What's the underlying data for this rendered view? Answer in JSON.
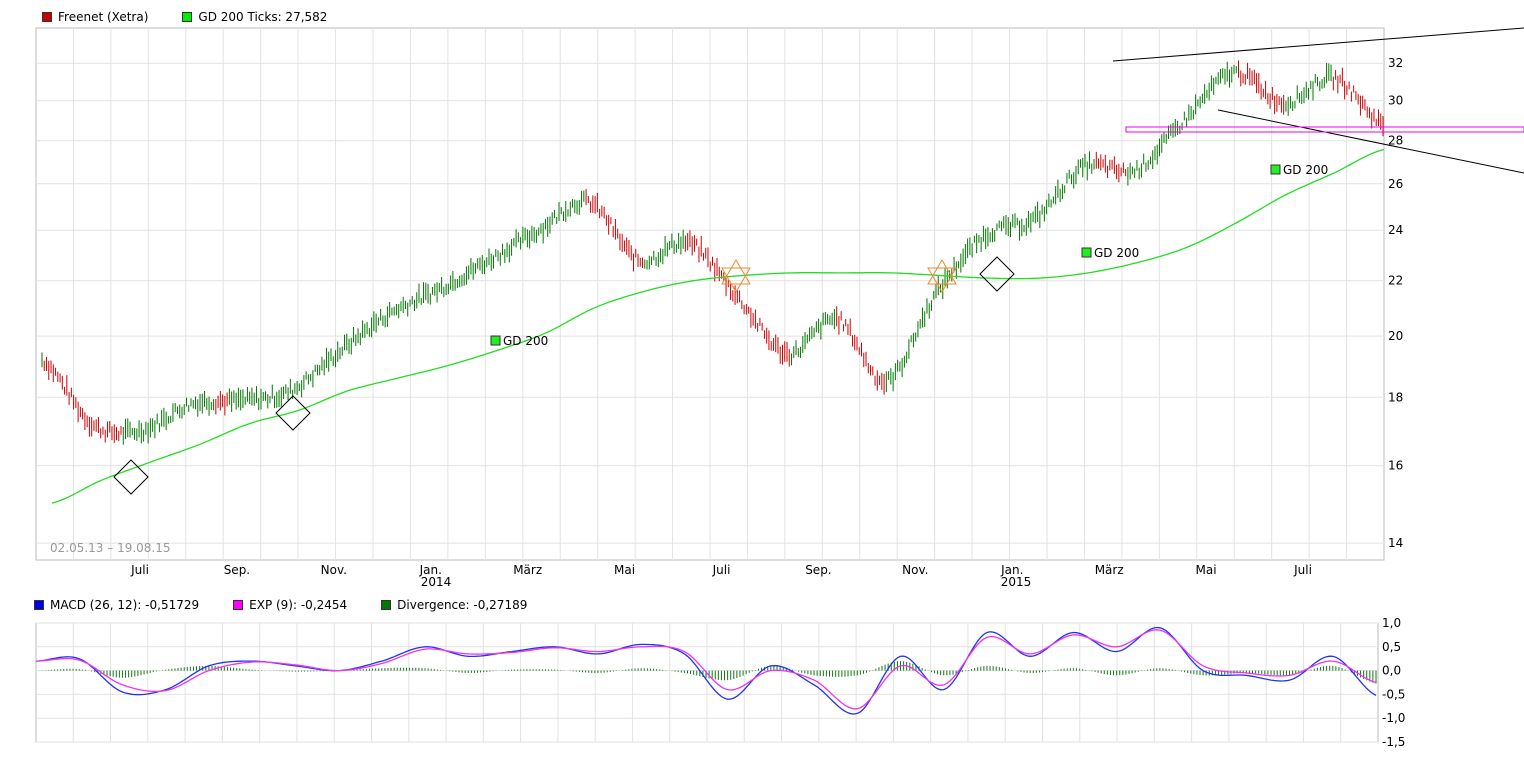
{
  "main_legend": [
    {
      "label": "Freenet (Xetra)",
      "color": "#cc0000"
    },
    {
      "label": "GD 200 Ticks: 27,582",
      "color": "#00ee00"
    }
  ],
  "date_range": "02.05.13 – 19.08.15",
  "macd_legend": [
    {
      "label": "MACD (26, 12): -0,51729",
      "color": "#0000ee"
    },
    {
      "label": "EXP (9): -0,2454",
      "color": "#ff00ff"
    },
    {
      "label": "Divergence: -0,27189",
      "color": "#007700"
    }
  ],
  "chart_data": [
    {
      "type": "line",
      "title": "Freenet (Xetra)",
      "xlabel": "",
      "ylabel": "",
      "ylim": [
        13.6,
        34
      ],
      "y_scale": "log",
      "y_ticks": [
        "14",
        "16",
        "18",
        "20",
        "22",
        "24",
        "26",
        "28",
        "30",
        "32"
      ],
      "x_tick_labels": [
        "Juli",
        "Sep.",
        "Nov.",
        "Jan.",
        "März",
        "Mai",
        "Juli",
        "Sep.",
        "Nov.",
        "Jan.",
        "März",
        "Mai",
        "Juli"
      ],
      "year_labels": [
        "2014",
        "2015"
      ],
      "series": [
        {
          "name": "Freenet (Xetra)",
          "style": "ohlc-bars",
          "x": [
            "05.2013",
            "06.2013",
            "07.2013",
            "08.2013",
            "09.2013",
            "10.2013",
            "11.2013",
            "12.2013",
            "01.2014",
            "02.2014",
            "03.2014",
            "04.2014",
            "05.2014",
            "06.2014",
            "07.2014",
            "08.2014",
            "09.2014",
            "10.2014",
            "11.2014",
            "12.2014",
            "01.2015",
            "02.2015",
            "03.2015",
            "04.2015",
            "05.2015",
            "06.2015",
            "07.2015",
            "08.2015"
          ],
          "values": [
            19.2,
            17.2,
            17.0,
            17.8,
            17.9,
            18.2,
            19.5,
            20.8,
            21.7,
            22.8,
            24.0,
            25.2,
            22.8,
            23.5,
            21.4,
            19.4,
            20.6,
            18.5,
            21.5,
            23.8,
            24.5,
            26.8,
            26.6,
            29.0,
            31.5,
            29.9,
            31.2,
            28.8
          ]
        },
        {
          "name": "GD 200",
          "style": "line",
          "x": [
            "05.2013",
            "06.2013",
            "07.2013",
            "08.2013",
            "09.2013",
            "10.2013",
            "11.2013",
            "12.2013",
            "01.2014",
            "02.2014",
            "03.2014",
            "04.2014",
            "05.2014",
            "06.2014",
            "07.2014",
            "08.2014",
            "09.2014",
            "10.2014",
            "11.2014",
            "12.2014",
            "01.2015",
            "02.2015",
            "03.2015",
            "04.2015",
            "05.2015",
            "06.2015",
            "07.2015",
            "08.2015"
          ],
          "values": [
            15.0,
            15.6,
            16.1,
            16.6,
            17.2,
            17.6,
            18.2,
            18.6,
            19.0,
            19.5,
            20.1,
            21.0,
            21.6,
            22.0,
            22.2,
            22.3,
            22.3,
            22.3,
            22.2,
            22.1,
            22.1,
            22.3,
            22.7,
            23.3,
            24.3,
            25.5,
            26.5,
            27.58
          ]
        }
      ],
      "annotations": [
        "GD 200",
        "GD 200",
        "GD 200"
      ]
    },
    {
      "type": "line",
      "title": "MACD",
      "ylim": [
        -1.5,
        1.0
      ],
      "y_ticks": [
        "1,0",
        "0,5",
        "0,0",
        "-0,5",
        "-1,0",
        "-1,5"
      ],
      "series": [
        {
          "name": "MACD (26, 12)",
          "values": [
            0.2,
            0.25,
            -0.45,
            -0.4,
            0.1,
            0.2,
            0.1,
            0.0,
            0.2,
            0.5,
            0.3,
            0.4,
            0.5,
            0.35,
            0.55,
            0.35,
            -0.6,
            0.1,
            -0.3,
            -0.9,
            0.3,
            -0.4,
            0.8,
            0.3,
            0.8,
            0.4,
            0.9,
            0.0,
            -0.1,
            -0.2,
            0.3,
            -0.52
          ]
        },
        {
          "name": "EXP (9)",
          "values": [
            0.2,
            0.22,
            -0.3,
            -0.42,
            0.0,
            0.18,
            0.12,
            0.0,
            0.15,
            0.45,
            0.35,
            0.38,
            0.48,
            0.4,
            0.5,
            0.4,
            -0.4,
            0.0,
            -0.2,
            -0.8,
            0.1,
            -0.3,
            0.7,
            0.35,
            0.75,
            0.5,
            0.85,
            0.1,
            -0.05,
            -0.1,
            0.2,
            -0.25
          ]
        },
        {
          "name": "Divergence",
          "style": "histogram",
          "values": [
            0.0,
            0.03,
            -0.15,
            0.02,
            0.1,
            0.02,
            -0.02,
            0.0,
            0.05,
            0.05,
            -0.05,
            0.02,
            0.02,
            -0.05,
            0.05,
            -0.05,
            -0.2,
            0.1,
            -0.1,
            -0.1,
            0.2,
            -0.1,
            0.1,
            -0.05,
            0.05,
            -0.1,
            0.05,
            -0.1,
            -0.05,
            -0.1,
            0.1,
            -0.27
          ]
        }
      ]
    }
  ]
}
